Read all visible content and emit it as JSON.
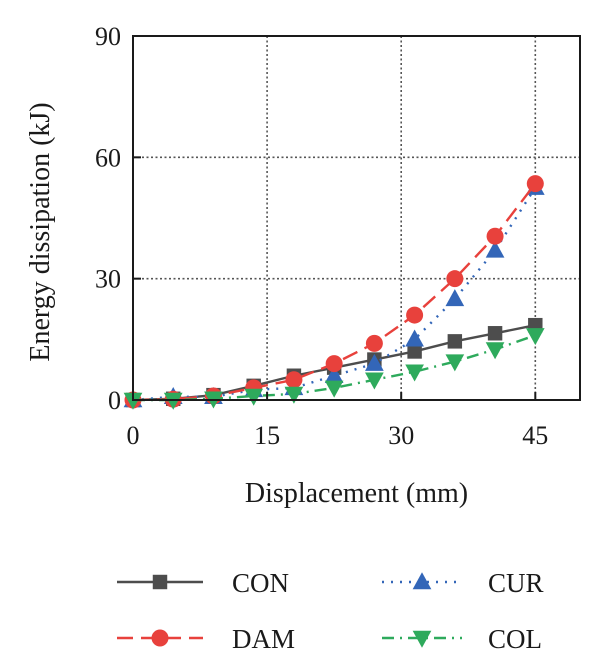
{
  "chart_data": {
    "type": "line",
    "xlabel": "Displacement (mm)",
    "ylabel": "Energy dissipation (kJ)",
    "xlim": [
      0,
      50
    ],
    "ylim": [
      0,
      90
    ],
    "x_ticks": [
      0,
      15,
      30,
      45
    ],
    "y_ticks": [
      0,
      30,
      60,
      90
    ],
    "grid": true,
    "legend_position": "bottom",
    "series": [
      {
        "name": "CON",
        "color": "#4d4d4d",
        "marker": "square",
        "dash": "solid",
        "x": [
          0,
          4.5,
          9,
          13.5,
          18,
          22.5,
          27,
          31.5,
          36,
          40.5,
          45
        ],
        "y": [
          0,
          0.3,
          1.2,
          3.5,
          6,
          8,
          10,
          12,
          14.5,
          16.5,
          18.5
        ]
      },
      {
        "name": "CUR",
        "color": "#3366b8",
        "marker": "triangle-up",
        "dash": "dot",
        "x": [
          0,
          4.5,
          9,
          13.5,
          18,
          22.5,
          27,
          31.5,
          36,
          40.5,
          45
        ],
        "y": [
          0,
          0.8,
          0.8,
          2.5,
          3,
          6,
          9,
          15,
          25,
          37,
          52.5
        ]
      },
      {
        "name": "DAM",
        "color": "#e8413c",
        "marker": "circle",
        "dash": "dash",
        "x": [
          0,
          4.5,
          9,
          13.5,
          18,
          22.5,
          27,
          31.5,
          36,
          40.5,
          45
        ],
        "y": [
          0,
          0.2,
          1,
          3,
          5,
          9,
          14,
          21,
          30,
          40.5,
          53.5
        ]
      },
      {
        "name": "COL",
        "color": "#2eaa5c",
        "marker": "triangle-down",
        "dash": "dashdot",
        "x": [
          0,
          4.5,
          9,
          13.5,
          18,
          22.5,
          27,
          31.5,
          36,
          40.5,
          45
        ],
        "y": [
          0,
          0,
          0.3,
          1,
          1.5,
          3,
          5,
          7,
          9.5,
          12.5,
          16
        ]
      }
    ],
    "legend_order": [
      0,
      1,
      2,
      3
    ]
  }
}
